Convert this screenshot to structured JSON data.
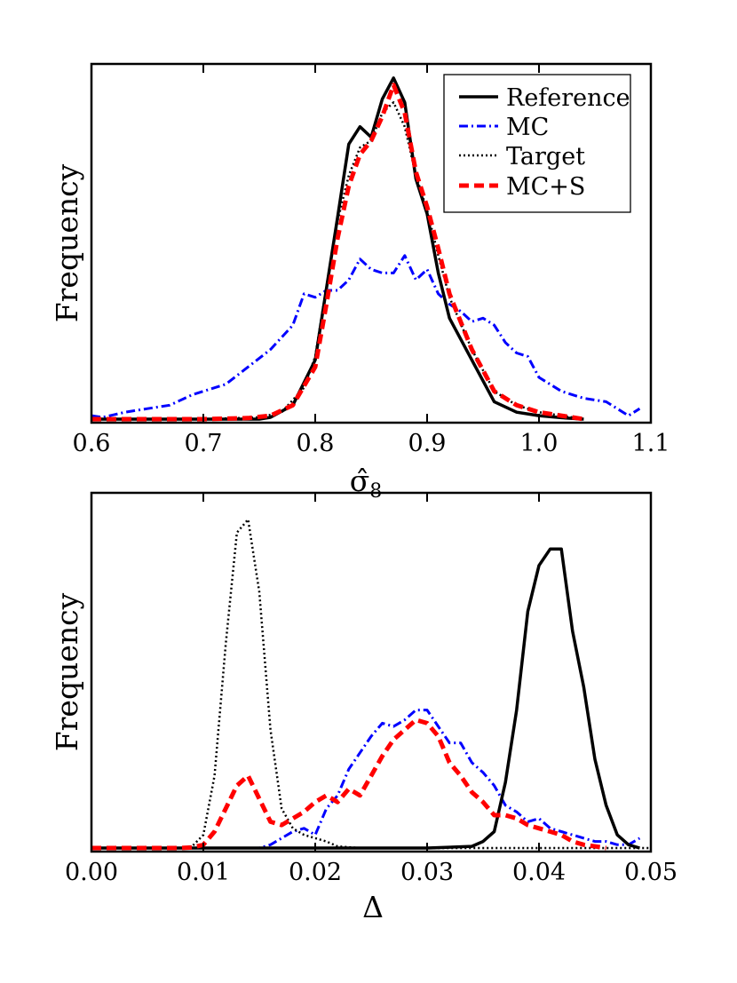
{
  "chart_data": [
    {
      "type": "line",
      "xlabel_main": "σ̂",
      "xlabel_sub": "8",
      "ylabel": "Frequency",
      "xlim": [
        0.6,
        1.1
      ],
      "ylim": [
        0,
        1.0
      ],
      "xticks": [
        "0.6",
        "0.7",
        "0.8",
        "0.9",
        "1.0",
        "1.1"
      ],
      "xtick_values": [
        0.6,
        0.7,
        0.8,
        0.9,
        1.0,
        1.1
      ],
      "legend_position": "top-right",
      "series": [
        {
          "name": "Reference",
          "color": "#000000",
          "style": "solid",
          "x": [
            0.6,
            0.7,
            0.75,
            0.76,
            0.78,
            0.8,
            0.82,
            0.83,
            0.84,
            0.85,
            0.86,
            0.87,
            0.88,
            0.89,
            0.9,
            0.91,
            0.92,
            0.94,
            0.96,
            0.98,
            1.0,
            1.02,
            1.04
          ],
          "y": [
            0.0,
            0.0,
            0.0,
            0.005,
            0.04,
            0.17,
            0.58,
            0.79,
            0.84,
            0.81,
            0.92,
            0.98,
            0.91,
            0.69,
            0.59,
            0.42,
            0.29,
            0.17,
            0.05,
            0.02,
            0.01,
            0.004,
            0.0
          ]
        },
        {
          "name": "MC",
          "color": "#0000ff",
          "style": "dashdot",
          "x": [
            0.6,
            0.61,
            0.63,
            0.65,
            0.67,
            0.69,
            0.7,
            0.72,
            0.74,
            0.76,
            0.78,
            0.79,
            0.8,
            0.81,
            0.82,
            0.83,
            0.84,
            0.85,
            0.86,
            0.87,
            0.88,
            0.89,
            0.9,
            0.91,
            0.92,
            0.93,
            0.94,
            0.95,
            0.96,
            0.97,
            0.98,
            0.99,
            1.0,
            1.02,
            1.04,
            1.06,
            1.08,
            1.09
          ],
          "y": [
            0.01,
            0.005,
            0.02,
            0.03,
            0.04,
            0.07,
            0.08,
            0.1,
            0.15,
            0.2,
            0.27,
            0.36,
            0.35,
            0.37,
            0.37,
            0.4,
            0.46,
            0.43,
            0.42,
            0.42,
            0.47,
            0.4,
            0.43,
            0.36,
            0.33,
            0.31,
            0.28,
            0.29,
            0.27,
            0.22,
            0.19,
            0.18,
            0.12,
            0.08,
            0.06,
            0.05,
            0.01,
            0.03
          ]
        },
        {
          "name": "Target",
          "color": "#000000",
          "style": "dotted",
          "x": [
            0.6,
            0.7,
            0.75,
            0.77,
            0.79,
            0.8,
            0.81,
            0.82,
            0.83,
            0.84,
            0.85,
            0.86,
            0.87,
            0.88,
            0.89,
            0.9,
            0.91,
            0.92,
            0.94,
            0.96,
            0.98,
            1.0,
            1.02,
            1.04
          ],
          "y": [
            0.0,
            0.0,
            0.005,
            0.02,
            0.09,
            0.18,
            0.38,
            0.57,
            0.7,
            0.78,
            0.8,
            0.88,
            0.91,
            0.84,
            0.7,
            0.6,
            0.47,
            0.35,
            0.2,
            0.08,
            0.04,
            0.02,
            0.01,
            0.0
          ]
        },
        {
          "name": "MC+S",
          "color": "#ff0000",
          "style": "dashed",
          "x": [
            0.6,
            0.7,
            0.74,
            0.76,
            0.78,
            0.8,
            0.81,
            0.82,
            0.83,
            0.84,
            0.85,
            0.86,
            0.87,
            0.88,
            0.89,
            0.9,
            0.91,
            0.92,
            0.94,
            0.96,
            0.98,
            1.0,
            1.02,
            1.04
          ],
          "y": [
            0.0,
            0.0,
            0.003,
            0.01,
            0.04,
            0.15,
            0.33,
            0.52,
            0.67,
            0.76,
            0.8,
            0.87,
            0.96,
            0.88,
            0.71,
            0.61,
            0.49,
            0.36,
            0.2,
            0.08,
            0.04,
            0.02,
            0.01,
            0.0
          ]
        }
      ]
    },
    {
      "type": "line",
      "xlabel_main": "Δ",
      "xlabel_sub": "",
      "ylabel": "Frequency",
      "xlim": [
        0.0,
        0.05
      ],
      "ylim": [
        0,
        1.0
      ],
      "xticks": [
        "0.00",
        "0.01",
        "0.02",
        "0.03",
        "0.04",
        "0.05"
      ],
      "xtick_values": [
        0.0,
        0.01,
        0.02,
        0.03,
        0.04,
        0.05
      ],
      "series": [
        {
          "name": "Reference",
          "color": "#000000",
          "style": "solid",
          "x": [
            0.0,
            0.03,
            0.034,
            0.035,
            0.036,
            0.037,
            0.038,
            0.039,
            0.04,
            0.041,
            0.042,
            0.043,
            0.044,
            0.045,
            0.046,
            0.047,
            0.048,
            0.049
          ],
          "y": [
            0.0,
            0.0,
            0.005,
            0.02,
            0.05,
            0.2,
            0.42,
            0.72,
            0.86,
            0.91,
            0.91,
            0.66,
            0.49,
            0.27,
            0.13,
            0.04,
            0.01,
            0.0
          ]
        },
        {
          "name": "MC",
          "color": "#0000ff",
          "style": "dashdot",
          "x": [
            0.0,
            0.015,
            0.016,
            0.017,
            0.018,
            0.019,
            0.02,
            0.021,
            0.022,
            0.023,
            0.024,
            0.025,
            0.026,
            0.027,
            0.028,
            0.029,
            0.03,
            0.031,
            0.032,
            0.033,
            0.034,
            0.035,
            0.036,
            0.037,
            0.038,
            0.039,
            0.04,
            0.041,
            0.042,
            0.043,
            0.044,
            0.045,
            0.046,
            0.047,
            0.048,
            0.049
          ],
          "y": [
            0.0,
            0.0,
            0.01,
            0.03,
            0.05,
            0.06,
            0.04,
            0.12,
            0.16,
            0.24,
            0.29,
            0.34,
            0.38,
            0.37,
            0.39,
            0.42,
            0.42,
            0.37,
            0.32,
            0.32,
            0.26,
            0.23,
            0.19,
            0.13,
            0.11,
            0.08,
            0.09,
            0.06,
            0.05,
            0.04,
            0.03,
            0.02,
            0.02,
            0.01,
            0.01,
            0.03
          ]
        },
        {
          "name": "Target",
          "color": "#000000",
          "style": "dotted",
          "x": [
            0.0,
            0.008,
            0.009,
            0.01,
            0.011,
            0.012,
            0.013,
            0.014,
            0.015,
            0.016,
            0.017,
            0.018,
            0.019,
            0.02,
            0.021,
            0.022,
            0.024,
            0.05
          ],
          "y": [
            0.0,
            0.0,
            0.005,
            0.04,
            0.22,
            0.62,
            0.96,
            1.0,
            0.78,
            0.36,
            0.12,
            0.06,
            0.04,
            0.03,
            0.02,
            0.005,
            0.0,
            0.0
          ]
        },
        {
          "name": "MC+S",
          "color": "#ff0000",
          "style": "dashed",
          "x": [
            0.0,
            0.008,
            0.009,
            0.01,
            0.011,
            0.012,
            0.013,
            0.014,
            0.015,
            0.016,
            0.017,
            0.018,
            0.019,
            0.02,
            0.021,
            0.022,
            0.023,
            0.024,
            0.025,
            0.026,
            0.027,
            0.028,
            0.029,
            0.03,
            0.031,
            0.032,
            0.033,
            0.034,
            0.035,
            0.036,
            0.037,
            0.038,
            0.039,
            0.04,
            0.041,
            0.042,
            0.043,
            0.044,
            0.045,
            0.046
          ],
          "y": [
            0.0,
            0.0,
            0.002,
            0.01,
            0.05,
            0.12,
            0.19,
            0.22,
            0.15,
            0.08,
            0.07,
            0.09,
            0.11,
            0.14,
            0.16,
            0.14,
            0.18,
            0.16,
            0.22,
            0.28,
            0.33,
            0.36,
            0.39,
            0.38,
            0.34,
            0.26,
            0.22,
            0.17,
            0.14,
            0.1,
            0.1,
            0.09,
            0.07,
            0.06,
            0.05,
            0.04,
            0.02,
            0.01,
            0.005,
            0.0
          ]
        }
      ]
    }
  ]
}
